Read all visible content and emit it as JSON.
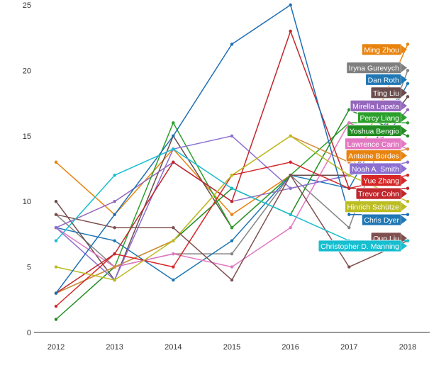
{
  "chart_data": {
    "type": "line",
    "title": "",
    "xlabel": "",
    "ylabel": "",
    "x": [
      "2012",
      "2013",
      "2014",
      "2015",
      "2016",
      "2017",
      "2018"
    ],
    "ylim": [
      0,
      25
    ],
    "yticks": [
      0,
      5,
      10,
      15,
      20,
      25
    ],
    "grid": false,
    "legend": "direct labels at right end of lines",
    "series": [
      {
        "name": "Ming Zhou",
        "color": "#e8830f",
        "values": [
          13,
          9,
          14,
          9,
          12,
          12,
          22
        ]
      },
      {
        "name": "Iryna Gurevych",
        "color": "#848484",
        "values": [
          9,
          5,
          6,
          6,
          12,
          8,
          20
        ]
      },
      {
        "name": "Dan Roth",
        "color": "#1f77b4",
        "values": [
          8,
          7,
          4,
          7,
          12,
          11,
          19
        ]
      },
      {
        "name": "Ting Liu",
        "color": "#6b4c4c",
        "values": [
          10,
          4,
          15,
          8,
          12,
          12,
          18
        ]
      },
      {
        "name": "Mirella Lapata",
        "color": "#9467bd",
        "values": [
          8,
          10,
          13,
          10,
          11,
          12,
          17
        ]
      },
      {
        "name": "Percy Liang",
        "color": "#2ca02c",
        "values": [
          3,
          5,
          16,
          8,
          12,
          16,
          16
        ]
      },
      {
        "name": "Yoshua Bengio",
        "color": "#218c21",
        "values": [
          1,
          5,
          7,
          11,
          9,
          17,
          15
        ]
      },
      {
        "name": "Lawrence Carin",
        "color": "#e377c2",
        "values": [
          8,
          5,
          6,
          5,
          8,
          16,
          14
        ]
      },
      {
        "name": "Antoine Bordes",
        "color": "#d98c3a",
        "values": [
          3,
          5,
          7,
          12,
          15,
          13,
          14
        ]
      },
      {
        "name": "Noah A. Smith",
        "color": "#8c6fd1",
        "values": [
          8,
          4,
          14,
          15,
          11,
          12,
          13
        ]
      },
      {
        "name": "Yue Zhang",
        "color": "#d62728",
        "values": [
          2,
          6,
          5,
          12,
          13,
          11,
          12
        ]
      },
      {
        "name": "Trevor Cohn",
        "color": "#c0272d",
        "values": [
          3,
          6,
          13,
          10,
          23,
          11,
          11
        ]
      },
      {
        "name": "Hinrich Schütze",
        "color": "#bcbd22",
        "values": [
          5,
          4,
          7,
          12,
          15,
          12,
          10
        ]
      },
      {
        "name": "Chris Dyer",
        "color": "#1f6fb4",
        "values": [
          3,
          9,
          15,
          22,
          25,
          9,
          9
        ]
      },
      {
        "name": "Qun Liu",
        "color": "#7f4f4f",
        "values": [
          9,
          8,
          8,
          4,
          12,
          5,
          7
        ]
      },
      {
        "name": "Christopher D. Manning",
        "color": "#17becf",
        "values": [
          7,
          12,
          14,
          11,
          9,
          7,
          7
        ]
      }
    ],
    "end_labels": [
      {
        "name": "Ming Zhou",
        "label_value": 21.6,
        "bg": "#e8830f"
      },
      {
        "name": "Iryna Gurevych",
        "label_value": 20.2,
        "bg": "#7f7f7f"
      },
      {
        "name": "Dan Roth",
        "label_value": 19.3,
        "bg": "#1f77b4"
      },
      {
        "name": "Ting Liu",
        "label_value": 18.3,
        "bg": "#6b4c4c"
      },
      {
        "name": "Mirella Lapata",
        "label_value": 17.3,
        "bg": "#9467bd"
      },
      {
        "name": "Percy Liang",
        "label_value": 16.4,
        "bg": "#2ca02c"
      },
      {
        "name": "Yoshua Bengio",
        "label_value": 15.4,
        "bg": "#218c21"
      },
      {
        "name": "Lawrence Carin",
        "label_value": 14.4,
        "bg": "#e377c2"
      },
      {
        "name": "Antoine Bordes",
        "label_value": 13.5,
        "bg": "#e8830f"
      },
      {
        "name": "Noah A. Smith",
        "label_value": 12.5,
        "bg": "#8c6fd1"
      },
      {
        "name": "Yue Zhang",
        "label_value": 11.6,
        "bg": "#d62728"
      },
      {
        "name": "Trevor Cohn",
        "label_value": 10.6,
        "bg": "#c0272d"
      },
      {
        "name": "Hinrich Schütze",
        "label_value": 9.6,
        "bg": "#bcbd22"
      },
      {
        "name": "Chris Dyer",
        "label_value": 8.6,
        "bg": "#1f77b4"
      },
      {
        "name": "Qun Liu",
        "label_value": 7.2,
        "bg": "#7f4f4f"
      },
      {
        "name": "Christopher D. Manning",
        "label_value": 6.6,
        "bg": "#17becf"
      }
    ]
  }
}
